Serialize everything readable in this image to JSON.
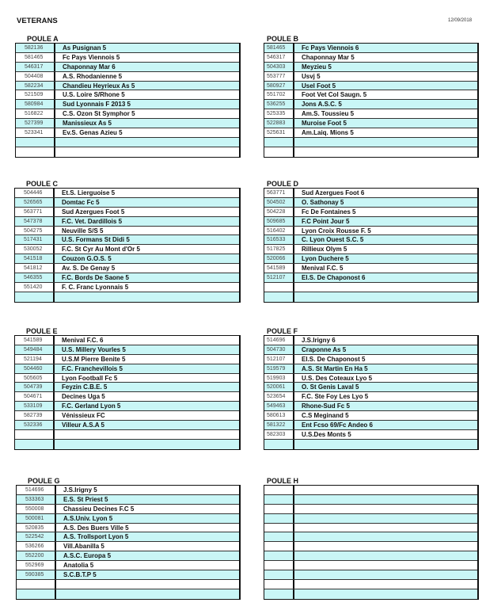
{
  "header": {
    "title": "VETERANS",
    "date": "12/09/2018"
  },
  "colors": {
    "row_shade": "#c9f6f6",
    "border": "#111111"
  },
  "poules": [
    {
      "title": "POULE A",
      "first_row_shaded": true,
      "rows": [
        {
          "id": "582136",
          "name": "As Pusignan 5"
        },
        {
          "id": "581465",
          "name": "Fc Pays Viennois 5"
        },
        {
          "id": "546317",
          "name": "Chaponnay Mar 6"
        },
        {
          "id": "504408",
          "name": "A.S. Rhodanienne 5"
        },
        {
          "id": "582234",
          "name": "Chandieu Heyrieux As 5"
        },
        {
          "id": "521509",
          "name": "U.S. Loire S/Rhone 5"
        },
        {
          "id": "580984",
          "name": "Sud Lyonnais F 2013 5"
        },
        {
          "id": "516822",
          "name": "C.S. Ozon St Symphor 5"
        },
        {
          "id": "527399",
          "name": "Manissieux As 5"
        },
        {
          "id": "523341",
          "name": "Ev.S. Genas Azieu 5"
        },
        {
          "id": "",
          "name": ""
        },
        {
          "id": "",
          "name": ""
        }
      ]
    },
    {
      "title": "POULE B",
      "first_row_shaded": true,
      "rows": [
        {
          "id": "581465",
          "name": "Fc Pays Viennois 6"
        },
        {
          "id": "546317",
          "name": "Chaponnay Mar 5"
        },
        {
          "id": "504303",
          "name": "Meyzieu 5"
        },
        {
          "id": "553777",
          "name": "Usvj 5"
        },
        {
          "id": "580927",
          "name": "Usel Foot 5"
        },
        {
          "id": "551702",
          "name": "Foot Vet Col Saugn. 5"
        },
        {
          "id": "536255",
          "name": "Jons A.S.C. 5"
        },
        {
          "id": "525335",
          "name": "Am.S. Toussieu 5"
        },
        {
          "id": "522883",
          "name": "Muroise Foot 5"
        },
        {
          "id": "525631",
          "name": "Am.Laiq. Mions 5"
        },
        {
          "id": "",
          "name": ""
        },
        {
          "id": "",
          "name": ""
        }
      ]
    },
    {
      "title": "POULE C",
      "first_row_shaded": false,
      "rows": [
        {
          "id": "504446",
          "name": "Et.S. Lierguoise 5"
        },
        {
          "id": "526565",
          "name": "Domtac Fc 5"
        },
        {
          "id": "563771",
          "name": "Sud Azergues Foot 5"
        },
        {
          "id": "547378",
          "name": "F.C. Vet. Dardillois 5"
        },
        {
          "id": "504275",
          "name": "Neuville S/S 5"
        },
        {
          "id": "517431",
          "name": "U.S. Formans St Didi 5"
        },
        {
          "id": "530052",
          "name": "F.C. St Cyr Au Mont d'Or 5"
        },
        {
          "id": "541518",
          "name": "Couzon G.O.S. 5"
        },
        {
          "id": "541812",
          "name": "Av. S. De Genay 5"
        },
        {
          "id": "546355",
          "name": "F.C. Bords De Saone 5"
        },
        {
          "id": "551420",
          "name": "F. C. Franc Lyonnais 5"
        },
        {
          "id": "",
          "name": ""
        }
      ]
    },
    {
      "title": "POULE D",
      "first_row_shaded": false,
      "rows": [
        {
          "id": "563771",
          "name": "Sud Azergues Foot 6"
        },
        {
          "id": "504502",
          "name": "O. Sathonay 5"
        },
        {
          "id": "504228",
          "name": "Fc De Fontaines 5"
        },
        {
          "id": "509685",
          "name": "F.C Point Jour 5"
        },
        {
          "id": "516402",
          "name": "Lyon Croix Rousse F. 5"
        },
        {
          "id": "516533",
          "name": "C. Lyon Ouest S.C. 5"
        },
        {
          "id": "517825",
          "name": "Rillieux Olym 5"
        },
        {
          "id": "520066",
          "name": "Lyon Duchere 5"
        },
        {
          "id": "541589",
          "name": "Menival F.C. 5"
        },
        {
          "id": "512107",
          "name": "El.S. De Chaponost 6"
        },
        {
          "id": "",
          "name": ""
        },
        {
          "id": "",
          "name": ""
        }
      ]
    },
    {
      "title": "POULE E",
      "first_row_shaded": false,
      "rows": [
        {
          "id": "541589",
          "name": "Menival F.C. 6"
        },
        {
          "id": "549484",
          "name": "U.S. Millery Vourles 5"
        },
        {
          "id": "521194",
          "name": "U.S.M Pierre Benite 5"
        },
        {
          "id": "504460",
          "name": "F.C. Franchevillois 5"
        },
        {
          "id": "505605",
          "name": "Lyon Football Fc 5"
        },
        {
          "id": "504739",
          "name": "Feyzin C.B.E. 5"
        },
        {
          "id": "504671",
          "name": "Decines Uga 5"
        },
        {
          "id": "533109",
          "name": "F.C. Gerland Lyon 5"
        },
        {
          "id": "582739",
          "name": "Vénissieux FC"
        },
        {
          "id": "532336",
          "name": "Villeur A.S.A 5"
        },
        {
          "id": "",
          "name": ""
        },
        {
          "id": "",
          "name": ""
        }
      ]
    },
    {
      "title": "POULE F",
      "first_row_shaded": false,
      "rows": [
        {
          "id": "514696",
          "name": "J.S.Irigny 6"
        },
        {
          "id": "504730",
          "name": "Craponne As 5"
        },
        {
          "id": "512107",
          "name": "El.S. De Chaponost 5"
        },
        {
          "id": "519579",
          "name": "A.S. St Martin En Ha 5"
        },
        {
          "id": "519903",
          "name": "U.S. Des Coteaux Lyo 5"
        },
        {
          "id": "520061",
          "name": "O. St Genis Laval 5"
        },
        {
          "id": "523654",
          "name": "F.C. Ste Foy Les Lyo 5"
        },
        {
          "id": "549463",
          "name": "Rhone-Sud Fc 5"
        },
        {
          "id": "580613",
          "name": "C.S Meginand 5"
        },
        {
          "id": "581322",
          "name": "Ent Fcso 69/Fc Andeo 6"
        },
        {
          "id": "582303",
          "name": "U.S.Des Monts 5"
        },
        {
          "id": "",
          "name": ""
        }
      ]
    },
    {
      "title": "POULE G",
      "first_row_shaded": false,
      "rows": [
        {
          "id": "514696",
          "name": "J.S.Irigny 5"
        },
        {
          "id": "533363",
          "name": "E.S. St Priest 5"
        },
        {
          "id": "550008",
          "name": "Chassieu Decines F.C 5"
        },
        {
          "id": "500081",
          "name": "A.S.Univ. Lyon 5"
        },
        {
          "id": "520835",
          "name": "A.S. Des Buers Ville 5"
        },
        {
          "id": "522542",
          "name": "A.S. Trollsport Lyon 5"
        },
        {
          "id": "536266",
          "name": "Vill.Abanilla 5"
        },
        {
          "id": "552200",
          "name": "A.S.C. Europa 5"
        },
        {
          "id": "552969",
          "name": "Anatolia 5"
        },
        {
          "id": "590385",
          "name": "S.C.B.T.P 5"
        },
        {
          "id": "",
          "name": ""
        },
        {
          "id": "",
          "name": ""
        }
      ]
    },
    {
      "title": "POULE H",
      "first_row_shaded": false,
      "rows": [
        {
          "id": "",
          "name": ""
        },
        {
          "id": "",
          "name": ""
        },
        {
          "id": "",
          "name": ""
        },
        {
          "id": "",
          "name": ""
        },
        {
          "id": "",
          "name": ""
        },
        {
          "id": "",
          "name": ""
        },
        {
          "id": "",
          "name": ""
        },
        {
          "id": "",
          "name": ""
        },
        {
          "id": "",
          "name": ""
        },
        {
          "id": "",
          "name": ""
        },
        {
          "id": "",
          "name": ""
        },
        {
          "id": "",
          "name": ""
        }
      ]
    }
  ]
}
